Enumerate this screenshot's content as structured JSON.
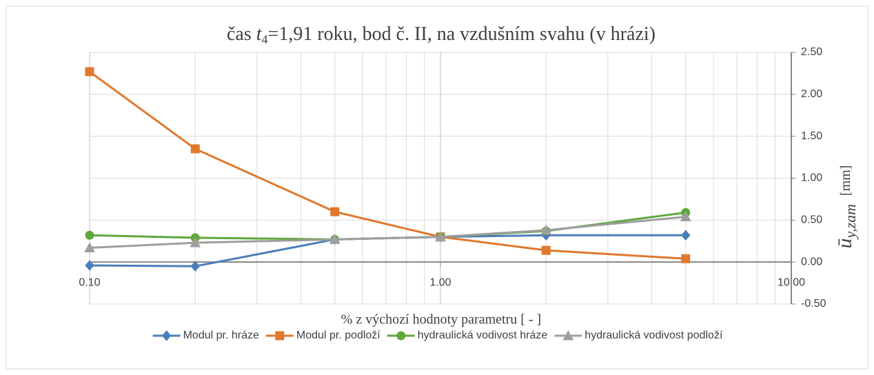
{
  "chart_data": {
    "type": "line",
    "title": [
      "čas ",
      "t",
      "4",
      "=1,91 roku, bod č. II, na vzdušním svahu (v hrázi)"
    ],
    "x_label": "% z výchozí hodnoty parametru [ - ]",
    "y_label": [
      "ū",
      "y,zam",
      "[mm]"
    ],
    "x": [
      0.1,
      0.2,
      0.5,
      1,
      2,
      5
    ],
    "x_log": true,
    "xlim": [
      0.1,
      10
    ],
    "xticks": [
      {
        "value": 0.1,
        "label": "0.10"
      },
      {
        "value": 1,
        "label": "1.00"
      },
      {
        "value": 10,
        "label": "10.00"
      }
    ],
    "ylim": [
      -0.5,
      2.5
    ],
    "yticks": [
      {
        "value": -0.5,
        "label": "-0.50"
      },
      {
        "value": 0,
        "label": "0.00"
      },
      {
        "value": 0.5,
        "label": "0.50"
      },
      {
        "value": 1,
        "label": "1.00"
      },
      {
        "value": 1.5,
        "label": "1.50"
      },
      {
        "value": 2,
        "label": "2.00"
      },
      {
        "value": 2.5,
        "label": "2.50"
      }
    ],
    "y_axis_side": "right",
    "grid": true,
    "minor_grid": true,
    "legend": "bottom",
    "series": [
      {
        "name": "Modul pr. hráze",
        "color": "#4a7ebb",
        "marker": "diamond",
        "values": [
          -0.04,
          -0.05,
          0.27,
          0.3,
          0.32,
          0.32
        ]
      },
      {
        "name": "Modul pr. podloží",
        "color": "#e0782e",
        "marker": "square",
        "values": [
          2.27,
          1.35,
          0.6,
          0.3,
          0.14,
          0.04
        ]
      },
      {
        "name": "hydraulická vodivost hráze",
        "color": "#5fa83c",
        "marker": "circle",
        "values": [
          0.32,
          0.29,
          0.27,
          0.3,
          0.37,
          0.59
        ]
      },
      {
        "name": "hydraulická vodivost podloží",
        "color": "#9e9e9e",
        "marker": "triangle",
        "values": [
          0.17,
          0.23,
          0.27,
          0.3,
          0.38,
          0.54
        ]
      }
    ]
  }
}
